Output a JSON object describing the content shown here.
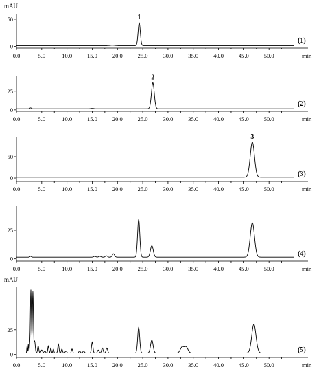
{
  "chart_data": [
    {
      "type": "line",
      "panel_label": "(1)",
      "ylabel": "mAU",
      "xlabel": "min",
      "xlim": [
        0,
        55
      ],
      "ylim": [
        -3,
        60
      ],
      "x_ticks": [
        0,
        5,
        10,
        15,
        20,
        25,
        30,
        35,
        40,
        45,
        50
      ],
      "x_tick_labels": [
        "0.0",
        "5.0",
        "10.0",
        "15.0",
        "20.0",
        "25.0",
        "30.0",
        "35.0",
        "40.0",
        "45.0",
        "50.0"
      ],
      "y_ticks": [
        0,
        50
      ],
      "y_tick_labels": [
        "0",
        "50"
      ],
      "baseline": 1.5,
      "peaks": [
        {
          "label": "1",
          "x": 24.3,
          "height": 42,
          "width": 0.22
        },
        {
          "label": "",
          "x": 19.0,
          "height": 0.8,
          "width": 0.5
        }
      ]
    },
    {
      "type": "line",
      "panel_label": "(2)",
      "ylabel": "",
      "xlabel": "min",
      "xlim": [
        0,
        55
      ],
      "ylim": [
        -2,
        46
      ],
      "x_ticks": [
        0,
        5,
        10,
        15,
        20,
        25,
        30,
        35,
        40,
        45,
        50
      ],
      "x_tick_labels": [
        "0.0",
        "5.0",
        "10.0",
        "15.0",
        "20.0",
        "25.0",
        "30.0",
        "35.0",
        "40.0",
        "45.0",
        "50.0"
      ],
      "y_ticks": [
        0,
        25
      ],
      "y_tick_labels": [
        "0",
        "25"
      ],
      "baseline": 1.5,
      "peaks": [
        {
          "label": "2",
          "x": 27.0,
          "height": 35,
          "width": 0.28
        },
        {
          "label": "",
          "x": 2.8,
          "height": 1.2,
          "width": 0.15
        },
        {
          "label": "",
          "x": 15.0,
          "height": 0.5,
          "width": 0.3
        }
      ]
    },
    {
      "type": "line",
      "panel_label": "(3)",
      "ylabel": "",
      "xlabel": "min",
      "xlim": [
        0,
        55
      ],
      "ylim": [
        -8,
        95
      ],
      "x_ticks": [
        0,
        5,
        10,
        15,
        20,
        25,
        30,
        35,
        40,
        45,
        50
      ],
      "x_tick_labels": [
        "0.0",
        "5.0",
        "10.0",
        "15.0",
        "20.0",
        "25.0",
        "30.0",
        "35.0",
        "40.0",
        "45.0",
        "50.0"
      ],
      "y_ticks": [
        0,
        50
      ],
      "y_tick_labels": [
        "0",
        "50"
      ],
      "baseline": 2,
      "peaks": [
        {
          "label": "3",
          "x": 46.7,
          "height": 82,
          "width": 0.42
        }
      ]
    },
    {
      "type": "line",
      "panel_label": "(4)",
      "ylabel": "",
      "xlabel": "min",
      "xlim": [
        0,
        55
      ],
      "ylim": [
        -2,
        46
      ],
      "x_ticks": [
        0,
        5,
        10,
        15,
        20,
        25,
        30,
        35,
        40,
        45,
        50
      ],
      "x_tick_labels": [
        "0.0",
        "5.0",
        "10.0",
        "15.0",
        "20.0",
        "25.0",
        "30.0",
        "35.0",
        "40.0",
        "45.0",
        "50.0"
      ],
      "y_ticks": [
        0,
        25
      ],
      "y_tick_labels": [
        "0",
        "25"
      ],
      "baseline": 1.5,
      "peaks": [
        {
          "label": "",
          "x": 24.2,
          "height": 33,
          "width": 0.22
        },
        {
          "label": "",
          "x": 26.8,
          "height": 10,
          "width": 0.28
        },
        {
          "label": "",
          "x": 46.7,
          "height": 30,
          "width": 0.42
        },
        {
          "label": "",
          "x": 19.2,
          "height": 3,
          "width": 0.22
        },
        {
          "label": "",
          "x": 17.8,
          "height": 1.2,
          "width": 0.2
        },
        {
          "label": "",
          "x": 15.5,
          "height": 0.8,
          "width": 0.2
        },
        {
          "label": "",
          "x": 16.5,
          "height": 0.8,
          "width": 0.2
        },
        {
          "label": "",
          "x": 2.8,
          "height": 0.8,
          "width": 0.15
        }
      ]
    },
    {
      "type": "line",
      "panel_label": "(5)",
      "ylabel": "mAU",
      "xlabel": "min",
      "xlim": [
        0,
        55
      ],
      "ylim": [
        -3,
        68
      ],
      "x_ticks": [
        0,
        5,
        10,
        15,
        20,
        25,
        30,
        35,
        40,
        45,
        50
      ],
      "x_tick_labels": [
        "0.0",
        "5.0",
        "10.0",
        "15.0",
        "20.0",
        "25.0",
        "30.0",
        "35.0",
        "40.0",
        "45.0",
        "50.0"
      ],
      "y_ticks": [
        0,
        25
      ],
      "y_tick_labels": [
        "0",
        "25"
      ],
      "baseline": 1.5,
      "peaks": [
        {
          "label": "",
          "x": 2.1,
          "height": 7,
          "width": 0.06
        },
        {
          "label": "",
          "x": 2.35,
          "height": 9,
          "width": 0.06
        },
        {
          "label": "",
          "x": 2.6,
          "height": 6,
          "width": 0.06
        },
        {
          "label": "",
          "x": 2.85,
          "height": 64,
          "width": 0.1
        },
        {
          "label": "",
          "x": 3.25,
          "height": 62,
          "width": 0.1
        },
        {
          "label": "",
          "x": 3.6,
          "height": 12,
          "width": 0.12
        },
        {
          "label": "",
          "x": 4.3,
          "height": 7,
          "width": 0.12
        },
        {
          "label": "",
          "x": 5.0,
          "height": 3,
          "width": 0.15
        },
        {
          "label": "",
          "x": 5.6,
          "height": 2,
          "width": 0.15
        },
        {
          "label": "",
          "x": 6.3,
          "height": 7,
          "width": 0.1
        },
        {
          "label": "",
          "x": 6.8,
          "height": 5,
          "width": 0.1
        },
        {
          "label": "",
          "x": 7.3,
          "height": 4,
          "width": 0.1
        },
        {
          "label": "",
          "x": 8.3,
          "height": 9,
          "width": 0.12
        },
        {
          "label": "",
          "x": 9.0,
          "height": 4,
          "width": 0.12
        },
        {
          "label": "",
          "x": 9.8,
          "height": 2,
          "width": 0.15
        },
        {
          "label": "",
          "x": 11.0,
          "height": 4,
          "width": 0.12
        },
        {
          "label": "",
          "x": 12.5,
          "height": 2,
          "width": 0.15
        },
        {
          "label": "",
          "x": 13.3,
          "height": 2,
          "width": 0.15
        },
        {
          "label": "",
          "x": 15.0,
          "height": 11,
          "width": 0.14
        },
        {
          "label": "",
          "x": 16.2,
          "height": 3,
          "width": 0.15
        },
        {
          "label": "",
          "x": 17.0,
          "height": 5,
          "width": 0.15
        },
        {
          "label": "",
          "x": 17.9,
          "height": 5,
          "width": 0.15
        },
        {
          "label": "",
          "x": 24.2,
          "height": 26,
          "width": 0.2
        },
        {
          "label": "",
          "x": 26.8,
          "height": 13,
          "width": 0.25
        },
        {
          "label": "",
          "x": 32.8,
          "height": 6,
          "width": 0.35
        },
        {
          "label": "",
          "x": 33.6,
          "height": 6,
          "width": 0.35
        },
        {
          "label": "",
          "x": 47.0,
          "height": 29,
          "width": 0.42
        }
      ]
    }
  ]
}
